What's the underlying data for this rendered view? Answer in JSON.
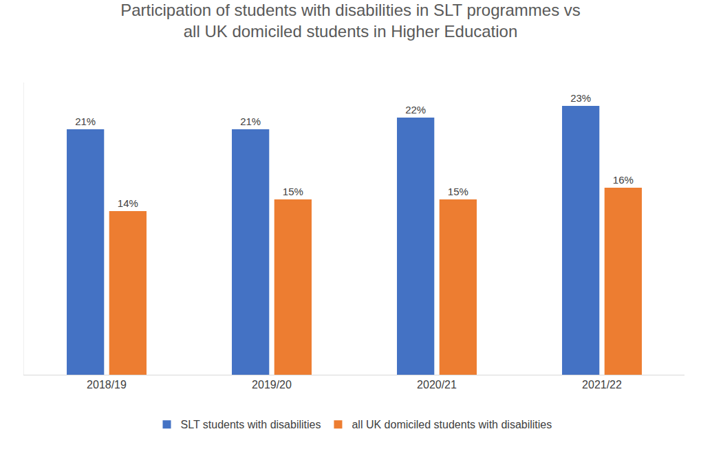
{
  "chart_data": {
    "type": "bar",
    "title": "Participation of students with disabilities in SLT programmes vs all UK domiciled students in Higher Education",
    "categories": [
      "2018/19",
      "2019/20",
      "2020/21",
      "2021/22"
    ],
    "series": [
      {
        "name": "SLT students with disabilities",
        "color": "#4472c4",
        "values": [
          21,
          21,
          22,
          23
        ],
        "value_labels": [
          "21%",
          "21%",
          "22%",
          "23%"
        ]
      },
      {
        "name": "all UK domiciled students with disabilities",
        "color": "#ed7d31",
        "values": [
          14,
          15,
          15,
          16
        ],
        "value_labels": [
          "14%",
          "15%",
          "15%",
          "16%"
        ]
      }
    ],
    "ylim": [
      0,
      25
    ],
    "yticks": [],
    "grid": false,
    "legend": "bottom",
    "data_labels": true,
    "tick_labels": "x"
  }
}
